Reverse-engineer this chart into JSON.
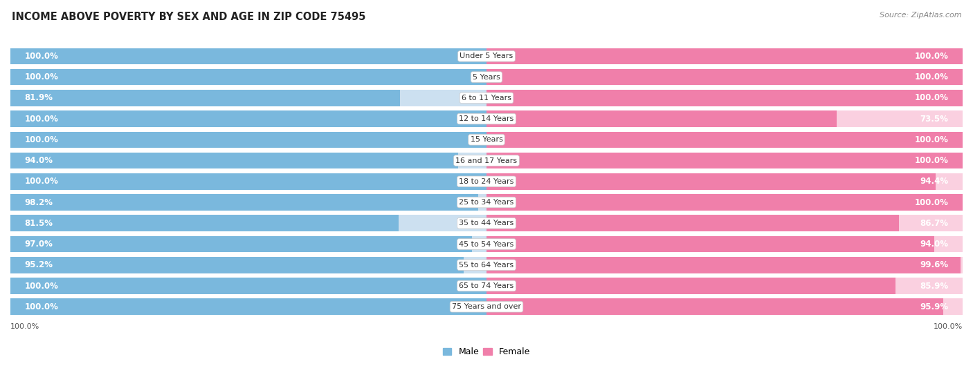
{
  "title": "INCOME ABOVE POVERTY BY SEX AND AGE IN ZIP CODE 75495",
  "source": "Source: ZipAtlas.com",
  "categories": [
    "Under 5 Years",
    "5 Years",
    "6 to 11 Years",
    "12 to 14 Years",
    "15 Years",
    "16 and 17 Years",
    "18 to 24 Years",
    "25 to 34 Years",
    "35 to 44 Years",
    "45 to 54 Years",
    "55 to 64 Years",
    "65 to 74 Years",
    "75 Years and over"
  ],
  "male_values": [
    100.0,
    100.0,
    81.9,
    100.0,
    100.0,
    94.0,
    100.0,
    98.2,
    81.5,
    97.0,
    95.2,
    100.0,
    100.0
  ],
  "female_values": [
    100.0,
    100.0,
    100.0,
    73.5,
    100.0,
    100.0,
    94.4,
    100.0,
    86.7,
    94.0,
    99.6,
    85.9,
    95.9
  ],
  "male_color": "#7ab8dd",
  "female_color": "#f07faa",
  "male_light_color": "#cce0f0",
  "female_light_color": "#fad0e0",
  "row_bg_color": "#eeeeee",
  "background_color": "#ffffff",
  "title_fontsize": 10.5,
  "source_fontsize": 8,
  "legend_fontsize": 9,
  "value_fontsize": 8.5,
  "category_fontsize": 8
}
